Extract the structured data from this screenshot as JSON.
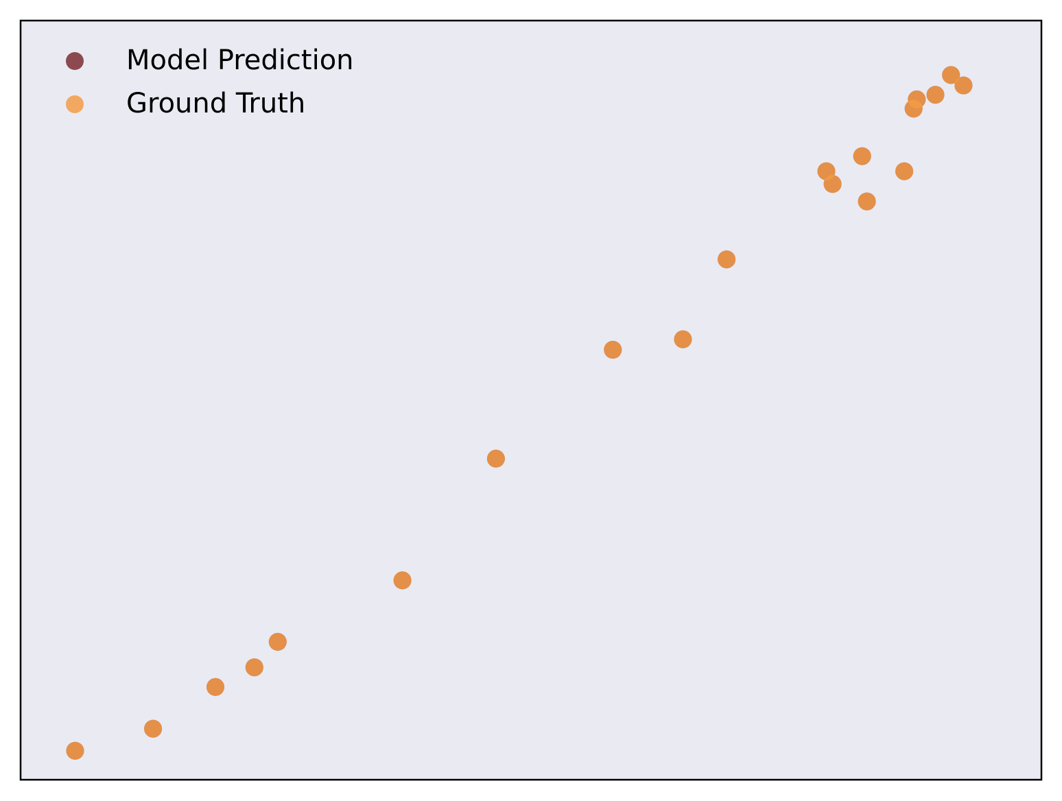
{
  "chart_data": {
    "type": "scatter",
    "title": "",
    "xlabel": "",
    "ylabel": "",
    "xlim": [
      -0.35,
      6.2
    ],
    "ylim": [
      -0.25,
      6.3
    ],
    "grid": false,
    "legend_position": "top-left",
    "series": [
      {
        "name": "Model Prediction",
        "color": "#7b2e34",
        "x": [
          0.0,
          0.5,
          0.9,
          1.15,
          1.3,
          2.1,
          2.7,
          3.45,
          3.9,
          4.18,
          4.82,
          4.86,
          5.05,
          5.08,
          5.32,
          5.38,
          5.4,
          5.52,
          5.62,
          5.7
        ],
        "y": [
          0.0,
          0.19,
          0.55,
          0.72,
          0.94,
          1.47,
          2.52,
          3.46,
          3.55,
          4.24,
          5.0,
          4.89,
          5.13,
          4.74,
          5.0,
          5.54,
          5.62,
          5.66,
          5.83,
          5.74
        ]
      },
      {
        "name": "Ground Truth",
        "color": "#f39c47",
        "x": [
          0.0,
          0.5,
          0.9,
          1.15,
          1.3,
          2.1,
          2.7,
          3.45,
          3.9,
          4.18,
          4.82,
          4.86,
          5.05,
          5.08,
          5.32,
          5.38,
          5.4,
          5.52,
          5.62,
          5.7
        ],
        "y": [
          0.0,
          0.19,
          0.55,
          0.72,
          0.94,
          1.47,
          2.52,
          3.46,
          3.55,
          4.24,
          5.0,
          4.89,
          5.13,
          4.74,
          5.0,
          5.54,
          5.62,
          5.66,
          5.83,
          5.74
        ]
      }
    ],
    "plot_background": "#eaeaf2"
  }
}
